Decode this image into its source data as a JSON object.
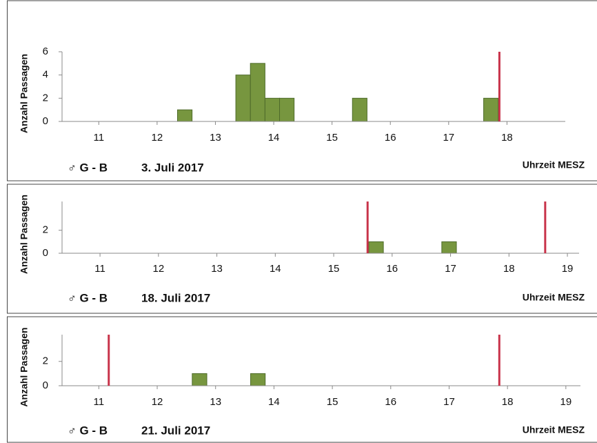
{
  "chart_data": [
    {
      "type": "histogram",
      "label": "♂ G - B",
      "title": "3. Juli 2017",
      "x_label": "Uhrzeit MESZ",
      "y_label": "Anzahl  Passagen",
      "bins": [
        12.35,
        12.6,
        12.85,
        13.1,
        13.35,
        13.6,
        13.85,
        14.1,
        14.35,
        14.6,
        14.85,
        15.1,
        15.35,
        15.6,
        15.85,
        16.1,
        16.35,
        16.6,
        16.85,
        17.1,
        17.35,
        17.6,
        17.85
      ],
      "counts": [
        1,
        0,
        0,
        0,
        4,
        5,
        2,
        2,
        0,
        0,
        0,
        0,
        2,
        0,
        0,
        0,
        0,
        0,
        0,
        0,
        0,
        2
      ],
      "color": "#77963f",
      "markers_x": [
        17.87
      ],
      "marker_color": "#c8334a",
      "xlim": [
        10.37,
        19.0
      ],
      "xticks": [
        11,
        12,
        13,
        14,
        15,
        16,
        17,
        18
      ],
      "ylim": [
        0,
        6
      ],
      "yticks": [
        0,
        2,
        4,
        6
      ]
    },
    {
      "type": "histogram",
      "label": "♂ G - B",
      "title": "18. Juli 2017",
      "x_label": "Uhrzeit MESZ",
      "y_label": "Anzahl  Passagen",
      "bins": [
        15.6,
        15.85,
        16.1,
        16.35,
        16.6,
        16.85,
        17.1
      ],
      "counts": [
        1,
        0,
        0,
        0,
        0,
        1
      ],
      "color": "#77963f",
      "markers_x": [
        15.58,
        18.62
      ],
      "marker_color": "#c8334a",
      "xlim": [
        10.35,
        19.2
      ],
      "xticks": [
        11,
        12,
        13,
        14,
        15,
        16,
        17,
        18,
        19
      ],
      "ylim": [
        0,
        4.5
      ],
      "yticks": [
        0,
        2
      ]
    },
    {
      "type": "histogram",
      "label": "♂ G - B",
      "title": "21. Juli 2017",
      "x_label": "Uhrzeit MESZ",
      "y_label": "Anzahl  Passagen",
      "bins": [
        12.6,
        12.85,
        13.1,
        13.35,
        13.6,
        13.85
      ],
      "counts": [
        1,
        0,
        0,
        0,
        1
      ],
      "color": "#77963f",
      "markers_x": [
        11.17,
        17.86
      ],
      "marker_color": "#c8334a",
      "xlim": [
        10.37,
        19.25
      ],
      "xticks": [
        11,
        12,
        13,
        14,
        15,
        16,
        17,
        18,
        19
      ],
      "ylim": [
        0,
        4.2
      ],
      "yticks": [
        0,
        2
      ]
    }
  ]
}
